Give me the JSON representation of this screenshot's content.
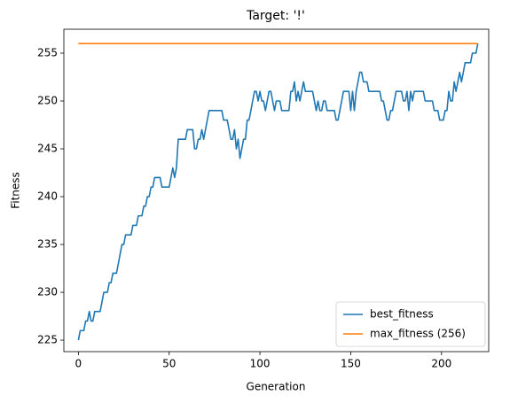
{
  "chart_data": {
    "type": "line",
    "title": "Target: '!'",
    "x_label": "Generation",
    "y_label": "Fitness",
    "xlim": [
      -8,
      226
    ],
    "ylim": [
      223.8,
      257.5
    ],
    "xticks": [
      0,
      50,
      100,
      150,
      200
    ],
    "yticks": [
      225,
      230,
      235,
      240,
      245,
      250,
      255
    ],
    "legend": "lower right",
    "series": [
      {
        "name": "best_fitness",
        "color": "#1f77b4",
        "x": [
          0,
          1,
          2,
          3,
          4,
          5,
          6,
          7,
          8,
          9,
          10,
          11,
          12,
          13,
          14,
          15,
          16,
          17,
          18,
          19,
          20,
          21,
          22,
          23,
          24,
          25,
          26,
          27,
          28,
          29,
          30,
          31,
          32,
          33,
          34,
          35,
          36,
          37,
          38,
          39,
          40,
          41,
          42,
          43,
          44,
          45,
          46,
          47,
          48,
          49,
          50,
          51,
          52,
          53,
          54,
          55,
          56,
          57,
          58,
          59,
          60,
          61,
          62,
          63,
          64,
          65,
          66,
          67,
          68,
          69,
          70,
          71,
          72,
          73,
          74,
          75,
          76,
          77,
          78,
          79,
          80,
          81,
          82,
          83,
          84,
          85,
          86,
          87,
          88,
          89,
          90,
          91,
          92,
          93,
          94,
          95,
          96,
          97,
          98,
          99,
          100,
          101,
          102,
          103,
          104,
          105,
          106,
          107,
          108,
          109,
          110,
          111,
          112,
          113,
          114,
          115,
          116,
          117,
          118,
          119,
          120,
          121,
          122,
          123,
          124,
          125,
          126,
          127,
          128,
          129,
          130,
          131,
          132,
          133,
          134,
          135,
          136,
          137,
          138,
          139,
          140,
          141,
          142,
          143,
          144,
          145,
          146,
          147,
          148,
          149,
          150,
          151,
          152,
          153,
          154,
          155,
          156,
          157,
          158,
          159,
          160,
          161,
          162,
          163,
          164,
          165,
          166,
          167,
          168,
          169,
          170,
          171,
          172,
          173,
          174,
          175,
          176,
          177,
          178,
          179,
          180,
          181,
          182,
          183,
          184,
          185,
          186,
          187,
          188,
          189,
          190,
          191,
          192,
          193,
          194,
          195,
          196,
          197,
          198,
          199,
          200,
          201,
          202,
          203,
          204,
          205,
          206,
          207,
          208,
          209,
          210,
          211,
          212,
          213,
          214,
          215,
          216,
          217,
          218,
          219,
          220
        ],
        "values": [
          225,
          226,
          226,
          226,
          227,
          227,
          228,
          227,
          227,
          228,
          228,
          228,
          228,
          229,
          230,
          230,
          230,
          231,
          231,
          232,
          232,
          232,
          233,
          234,
          235,
          235,
          236,
          236,
          236,
          236,
          237,
          237,
          237,
          238,
          238,
          238,
          239,
          239,
          240,
          240,
          241,
          241,
          242,
          242,
          242,
          242,
          241,
          241,
          241,
          241,
          241,
          242,
          243,
          242,
          243,
          246,
          246,
          246,
          246,
          246,
          247,
          247,
          247,
          247,
          245,
          245,
          246,
          246,
          247,
          246,
          247,
          248,
          249,
          249,
          249,
          249,
          249,
          249,
          249,
          249,
          248,
          248,
          248,
          247,
          246,
          246,
          247,
          245,
          246,
          244,
          245,
          246,
          246,
          248,
          248,
          249,
          250,
          251,
          251,
          250,
          251,
          250,
          250,
          249,
          250,
          251,
          251,
          250,
          249,
          250,
          250,
          250,
          249,
          249,
          249,
          249,
          249,
          251,
          251,
          252,
          250,
          251,
          250,
          251,
          252,
          251,
          251,
          251,
          251,
          251,
          250,
          249,
          250,
          249,
          249,
          250,
          250,
          249,
          249,
          249,
          249,
          249,
          248,
          248,
          249,
          250,
          251,
          251,
          251,
          251,
          249,
          251,
          249,
          251,
          252,
          253,
          253,
          252,
          252,
          252,
          251,
          251,
          251,
          251,
          251,
          251,
          251,
          250,
          250,
          249,
          248,
          248,
          249,
          249,
          250,
          251,
          251,
          251,
          251,
          250,
          250,
          251,
          249,
          251,
          250,
          251,
          251,
          251,
          251,
          251,
          251,
          250,
          250,
          250,
          250,
          250,
          249,
          249,
          249,
          248,
          248,
          248,
          249,
          249,
          251,
          250,
          250,
          252,
          251,
          252,
          253,
          252,
          253,
          254,
          254,
          254,
          254,
          255,
          255,
          255,
          256
        ]
      },
      {
        "name": "max_fitness (256)",
        "color": "#ff7f0e",
        "x": [
          0,
          220
        ],
        "values": [
          256,
          256
        ]
      }
    ]
  }
}
